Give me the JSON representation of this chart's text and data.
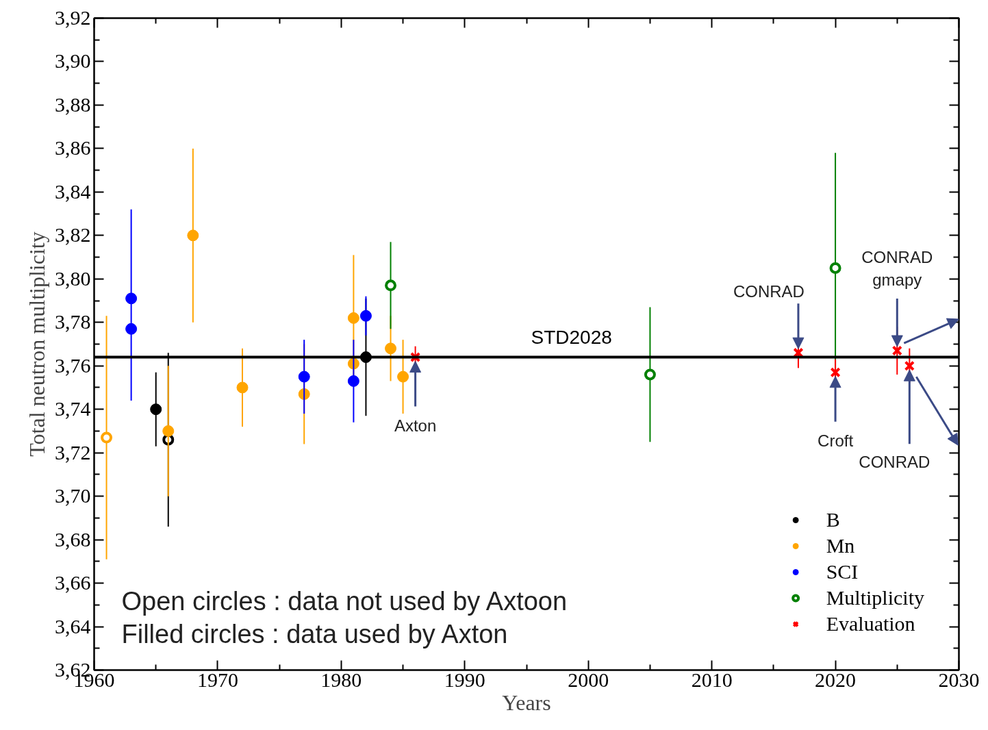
{
  "chart_data": {
    "type": "scatter",
    "xlabel": "Years",
    "ylabel": "Total neutron multiplicity",
    "xlim": [
      1960,
      2030
    ],
    "xticks": [
      1960,
      1970,
      1980,
      1990,
      2000,
      2010,
      2020,
      2030
    ],
    "ylim": [
      3.62,
      3.92
    ],
    "yticks": [
      {
        "value": 3.62,
        "label": "3,62"
      },
      {
        "value": 3.64,
        "label": "3,64"
      },
      {
        "value": 3.66,
        "label": "3,66"
      },
      {
        "value": 3.68,
        "label": "3,68"
      },
      {
        "value": 3.7,
        "label": "3,70"
      },
      {
        "value": 3.72,
        "label": "3,72"
      },
      {
        "value": 3.74,
        "label": "3,74"
      },
      {
        "value": 3.76,
        "label": "3,76"
      },
      {
        "value": 3.78,
        "label": "3,78"
      },
      {
        "value": 3.8,
        "label": "3,80"
      },
      {
        "value": 3.82,
        "label": "3,82"
      },
      {
        "value": 3.84,
        "label": "3,84"
      },
      {
        "value": 3.86,
        "label": "3,86"
      },
      {
        "value": 3.88,
        "label": "3,88"
      },
      {
        "value": 3.9,
        "label": "3,90"
      },
      {
        "value": 3.92,
        "label": "3,92"
      }
    ],
    "grid": false,
    "legend": "bottom right",
    "marker": "circle",
    "series": [
      {
        "name": "B",
        "color": "#000000",
        "x": [
          1965,
          1982
        ],
        "values": [
          3.74,
          3.764
        ],
        "errors": [
          0.017,
          0.027
        ]
      },
      {
        "color": "#000000",
        "x": [
          1966
        ],
        "values": [
          3.726
        ],
        "errors": [
          0.04
        ]
      },
      {
        "name": "Mn",
        "color": "#ffa500",
        "x": [
          1966,
          1968,
          1972,
          1977,
          1981,
          1981,
          1984,
          1985
        ],
        "values": [
          3.73,
          3.82,
          3.75,
          3.747,
          3.782,
          3.761,
          3.768,
          3.755
        ],
        "errors": [
          0.03,
          0.04,
          0.018,
          0.023,
          0.029,
          null,
          0.015,
          0.017
        ]
      },
      {
        "color": "#ffa500",
        "x": [
          1961
        ],
        "values": [
          3.727
        ],
        "errors": [
          0.056
        ]
      },
      {
        "name": "SCI",
        "color": "#0000ff",
        "x": [
          1963,
          1963,
          1977,
          1981,
          1982
        ],
        "values": [
          3.791,
          3.777,
          3.755,
          3.753,
          3.783
        ],
        "errors": [
          [
            3.744,
            3.832
          ],
          null,
          0.017,
          0.019,
          0.009
        ]
      },
      {
        "name": "Multiplicity",
        "color": "#008000",
        "x": [
          1984,
          2005,
          2020
        ],
        "values": [
          3.797,
          3.756,
          3.805
        ],
        "errors": [
          0.02,
          0.031,
          0.053
        ]
      },
      {
        "name": "Evaluation",
        "color": "#ff0000",
        "marker": "cross",
        "x": [
          1986,
          2017,
          2020,
          2025,
          2026
        ],
        "values": [
          3.764,
          3.766,
          3.757,
          3.767,
          3.76
        ],
        "errors": [
          0.005,
          0.007,
          0.006,
          0.011,
          0.008
        ]
      }
    ],
    "ref_lines": [
      {
        "axis": "y",
        "value": 3.764,
        "label": "STD2028",
        "color": "#000000"
      }
    ],
    "annotations": [
      {
        "text": "Axton",
        "x": 1986,
        "y": 3.764
      },
      {
        "text": "CONRAD",
        "x": 2017,
        "y": 3.766
      },
      {
        "text": "Croft",
        "x": 2020,
        "y": 3.757
      },
      {
        "text": "CONRAD\ngmapy",
        "x": 2025,
        "y": 3.767
      },
      {
        "text": "CONRAD",
        "x": 2026,
        "y": 3.76
      },
      "Open circles : data not used by Axtoon",
      "Filled circles : data used by Axton"
    ]
  }
}
